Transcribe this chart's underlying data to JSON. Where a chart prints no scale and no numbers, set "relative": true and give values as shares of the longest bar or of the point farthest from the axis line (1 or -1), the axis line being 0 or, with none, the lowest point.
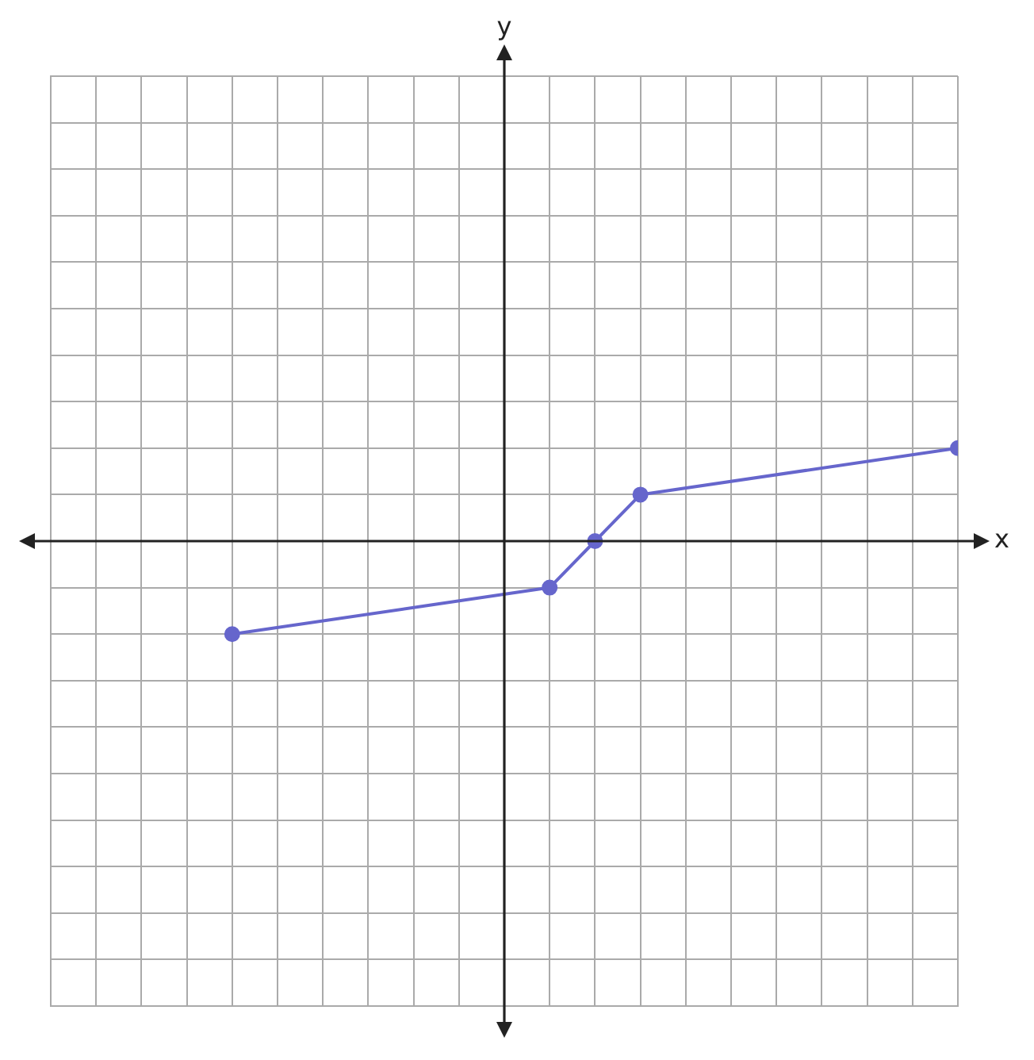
{
  "chart_data": {
    "type": "line",
    "xlabel": "x",
    "annotations": [
      "y"
    ],
    "relative": true,
    "categories": [
      null,
      null,
      null,
      null,
      null,
      null,
      null,
      null,
      null,
      null,
      null,
      null,
      null,
      null,
      null,
      null,
      null,
      null,
      null,
      null,
      null
    ],
    "series": [
      {
        "color": "#6666cc",
        "values": [
          null,
          null,
          null,
          null,
          -1,
          null,
          null,
          null,
          null,
          null,
          null,
          -0.5,
          0,
          0.5,
          null,
          null,
          null,
          null,
          null,
          null,
          1
        ]
      }
    ],
    "grid": true,
    "marker": "circle",
    "line_style": "solid",
    "legend": false
  }
}
